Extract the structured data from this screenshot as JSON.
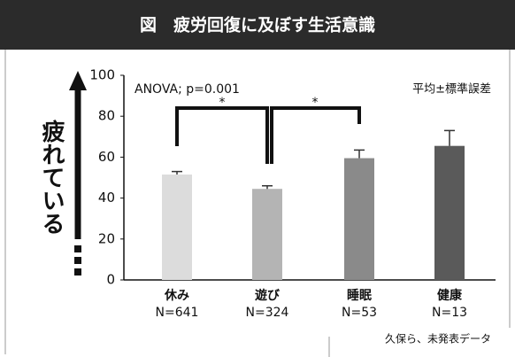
{
  "chart_data": {
    "type": "bar",
    "title": "図　疲労回復に及ぼす生活意識",
    "y_label": "疲れている",
    "annotation_left": "ANOVA; p=0.001",
    "annotation_right": "平均±標準誤差",
    "source": "久保ら、未発表データ",
    "categories": [
      "休み",
      "遊び",
      "睡眠",
      "健康"
    ],
    "sample_sizes": [
      "N=641",
      "N=324",
      "N=53",
      "N=13"
    ],
    "values": [
      51.5,
      44.5,
      59.5,
      65.5
    ],
    "errors": [
      1.5,
      1.5,
      4,
      7.5
    ],
    "colors": [
      "#dcdcdc",
      "#b4b4b4",
      "#8a8a8a",
      "#5a5a5a"
    ],
    "significance": [
      {
        "label": "*"
      },
      {
        "label": "*"
      }
    ],
    "ylim": [
      0,
      100
    ],
    "yticks": [
      0,
      20,
      40,
      60,
      80,
      100
    ]
  }
}
